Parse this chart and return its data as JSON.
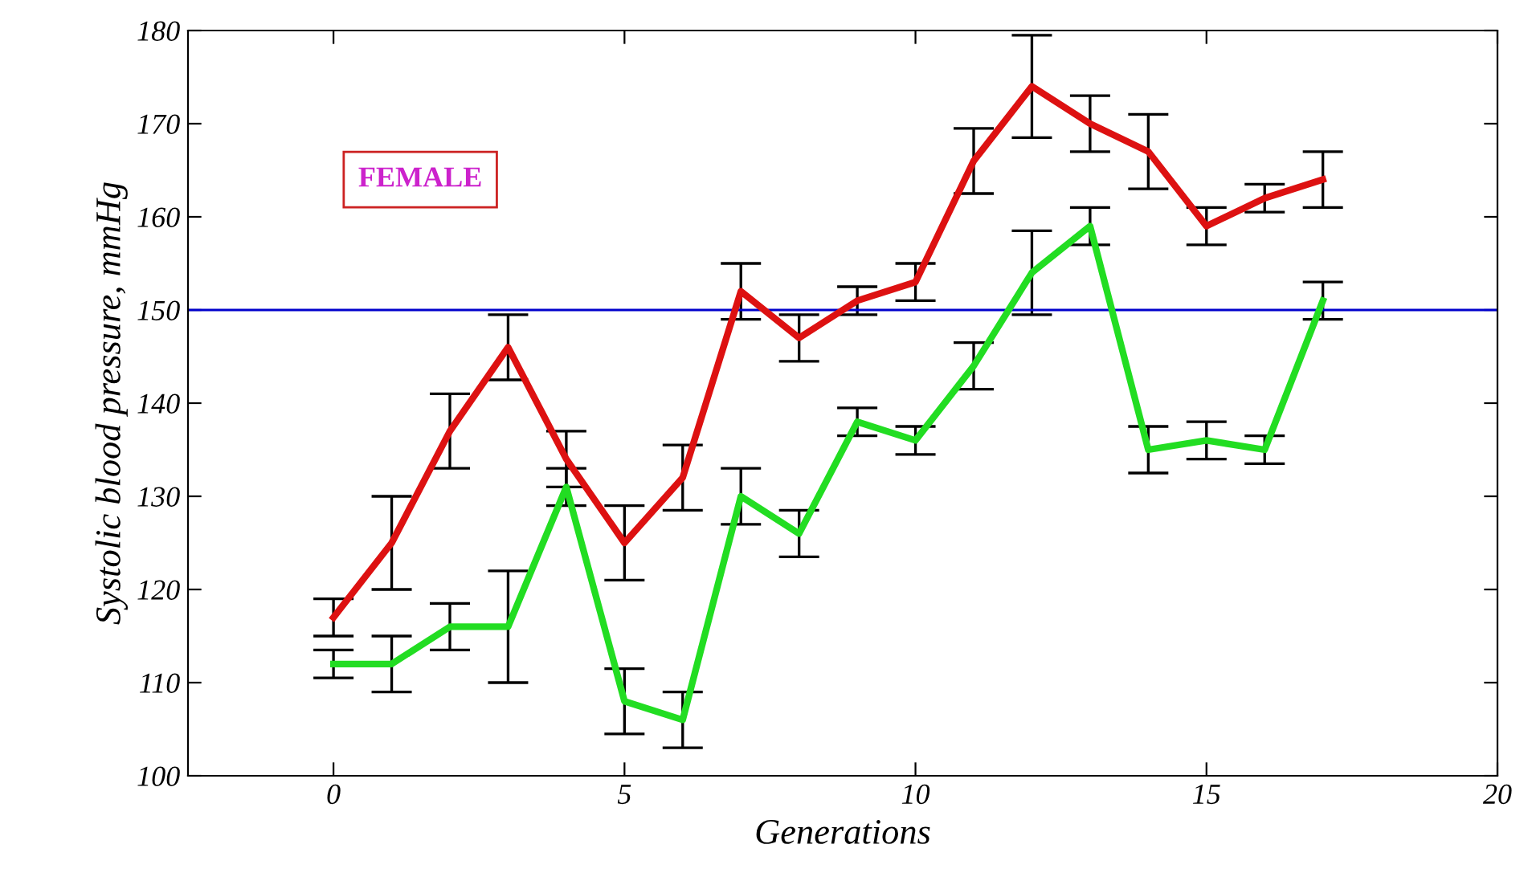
{
  "chart_data": {
    "type": "line",
    "xlabel": "Generations",
    "ylabel": "Systolic blood pressure, mmHg",
    "x": [
      0,
      1,
      2,
      3,
      4,
      5,
      6,
      7,
      8,
      9,
      10,
      11,
      12,
      13,
      14,
      15,
      16,
      17
    ],
    "series": [
      {
        "color": "#dd1111",
        "values": [
          117,
          125,
          137,
          146,
          134,
          125,
          132,
          152,
          147,
          151,
          153,
          166,
          174,
          170,
          167,
          159,
          162,
          164
        ],
        "errors": [
          2,
          5,
          4,
          3.5,
          3,
          4,
          3.5,
          3,
          2.5,
          1.5,
          2,
          3.5,
          5.5,
          3,
          4,
          2,
          1.5,
          3
        ]
      },
      {
        "color": "#22dd22",
        "values": [
          112,
          112,
          116,
          116,
          131,
          108,
          106,
          130,
          126,
          138,
          136,
          144,
          154,
          159,
          135,
          136,
          135,
          151
        ],
        "errors": [
          1.5,
          3,
          2.5,
          6,
          2,
          3.5,
          3,
          3,
          2.5,
          1.5,
          1.5,
          2.5,
          4.5,
          2,
          2.5,
          2,
          1.5,
          2
        ]
      }
    ],
    "annotations": [
      "FEMALE"
    ],
    "ref_lines": [
      {
        "axis": "y",
        "value": 150,
        "color": "#0000cc"
      }
    ],
    "xlim": [
      -2.5,
      20
    ],
    "xticks": [
      0,
      5,
      10,
      15,
      20
    ],
    "ylim": [
      100,
      180
    ],
    "yticks": [
      100,
      110,
      120,
      130,
      140,
      150,
      160,
      170,
      180
    ],
    "grid": false
  }
}
